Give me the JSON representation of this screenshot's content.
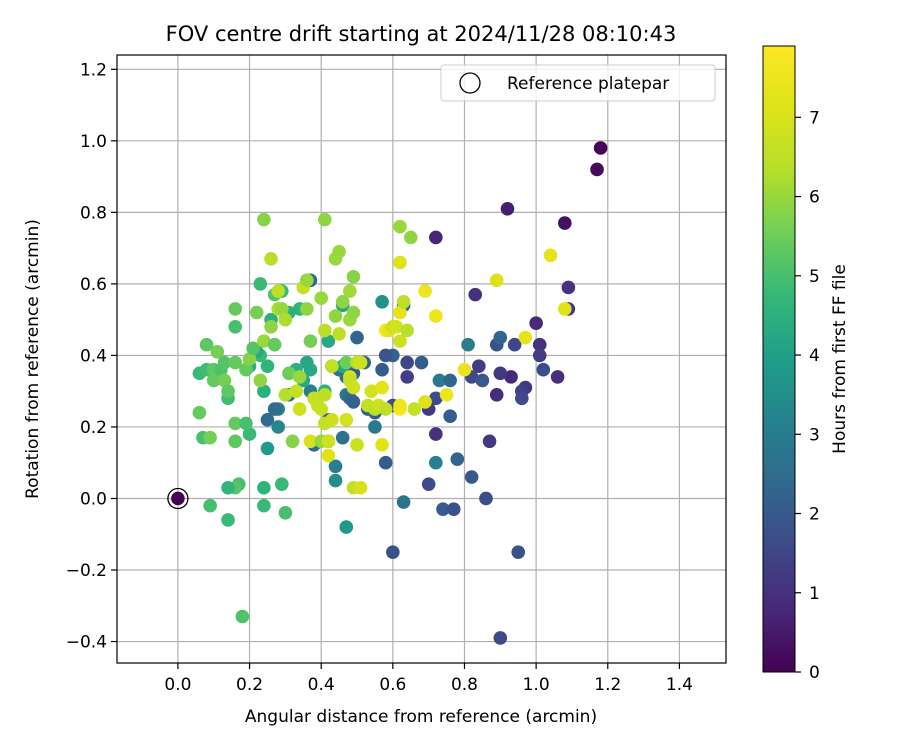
{
  "chart_data": {
    "type": "scatter",
    "title": "FOV centre drift starting at 2024/11/28 08:10:43",
    "xlabel": "Angular distance from reference (arcmin)",
    "ylabel": "Rotation from reference (arcmin)",
    "xlim": [
      -0.17,
      1.53
    ],
    "ylim": [
      -0.46,
      1.24
    ],
    "xticks": [
      "0.0",
      "0.2",
      "0.4",
      "0.6",
      "0.8",
      "1.0",
      "1.2",
      "1.4"
    ],
    "xtick_values": [
      0.0,
      0.2,
      0.4,
      0.6,
      0.8,
      1.0,
      1.2,
      1.4
    ],
    "yticks": [
      "−0.4",
      "−0.2",
      "0.0",
      "0.2",
      "0.4",
      "0.6",
      "0.8",
      "1.0",
      "1.2"
    ],
    "ytick_values": [
      -0.4,
      -0.2,
      0.0,
      0.2,
      0.4,
      0.6,
      0.8,
      1.0,
      1.2
    ],
    "grid": true,
    "legend": {
      "position": "top-right",
      "entries": [
        "Reference platepar"
      ]
    },
    "colorbar": {
      "label": "Hours from first FF file",
      "colormap": "viridis",
      "range": [
        0,
        7.9
      ],
      "ticks": [
        "0",
        "1",
        "2",
        "3",
        "4",
        "5",
        "6",
        "7"
      ],
      "tick_values": [
        0,
        1,
        2,
        3,
        4,
        5,
        6,
        7
      ]
    },
    "reference_point": {
      "x": 0.0,
      "y": 0.0,
      "label": "Reference platepar"
    },
    "points": [
      [
        1.18,
        0.98,
        0.1
      ],
      [
        1.17,
        0.92,
        0.2
      ],
      [
        1.08,
        0.77,
        0.3
      ],
      [
        0.92,
        0.81,
        0.6
      ],
      [
        1.09,
        0.59,
        1.0
      ],
      [
        1.09,
        0.53,
        1.2
      ],
      [
        1.06,
        0.34,
        0.9
      ],
      [
        1.0,
        0.49,
        0.8
      ],
      [
        1.01,
        0.43,
        1.0
      ],
      [
        1.01,
        0.4,
        1.3
      ],
      [
        1.02,
        0.36,
        1.7
      ],
      [
        0.97,
        0.31,
        1.1
      ],
      [
        0.96,
        0.3,
        1.4
      ],
      [
        0.96,
        0.28,
        1.6
      ],
      [
        0.94,
        0.43,
        1.5
      ],
      [
        0.93,
        0.34,
        0.8
      ],
      [
        0.9,
        0.35,
        1.2
      ],
      [
        0.89,
        0.43,
        1.8
      ],
      [
        0.9,
        0.45,
        2.3
      ],
      [
        0.89,
        0.29,
        0.9
      ],
      [
        0.84,
        0.37,
        1.3
      ],
      [
        0.83,
        0.57,
        1.0
      ],
      [
        0.82,
        0.34,
        1.6
      ],
      [
        0.85,
        0.33,
        2.0
      ],
      [
        0.81,
        0.43,
        3.0
      ],
      [
        0.87,
        0.16,
        1.2
      ],
      [
        0.82,
        0.06,
        2.0
      ],
      [
        0.86,
        0.0,
        1.7
      ],
      [
        0.95,
        -0.15,
        1.8
      ],
      [
        0.9,
        -0.39,
        1.6
      ],
      [
        0.72,
        0.73,
        0.7
      ],
      [
        0.72,
        0.18,
        1.0
      ],
      [
        0.76,
        0.23,
        2.1
      ],
      [
        0.72,
        0.28,
        1.6
      ],
      [
        0.7,
        0.25,
        1.2
      ],
      [
        0.73,
        0.33,
        2.9
      ],
      [
        0.76,
        0.33,
        2.3
      ],
      [
        0.68,
        0.38,
        2.1
      ],
      [
        0.64,
        0.38,
        1.5
      ],
      [
        0.64,
        0.34,
        1.4
      ],
      [
        0.72,
        0.1,
        3.1
      ],
      [
        0.7,
        0.04,
        1.6
      ],
      [
        0.74,
        -0.03,
        2.0
      ],
      [
        0.77,
        -0.03,
        1.8
      ],
      [
        0.78,
        0.11,
        2.3
      ],
      [
        0.63,
        0.54,
        2.4
      ],
      [
        0.6,
        0.4,
        2.2
      ],
      [
        0.58,
        0.4,
        1.9
      ],
      [
        0.57,
        0.36,
        2.1
      ],
      [
        0.6,
        0.26,
        1.6
      ],
      [
        0.58,
        0.1,
        2.1
      ],
      [
        0.63,
        -0.01,
        2.7
      ],
      [
        0.6,
        -0.15,
        1.8
      ],
      [
        0.57,
        0.55,
        3.6
      ],
      [
        0.55,
        0.24,
        2.1
      ],
      [
        0.55,
        0.2,
        2.9
      ],
      [
        0.53,
        0.25,
        2.3
      ],
      [
        0.52,
        0.38,
        2.3
      ],
      [
        0.5,
        0.45,
        2.3
      ],
      [
        0.49,
        0.35,
        2.1
      ],
      [
        0.47,
        0.34,
        2.5
      ],
      [
        0.47,
        0.29,
        2.8
      ],
      [
        0.48,
        0.28,
        2.4
      ],
      [
        0.49,
        0.27,
        2.2
      ],
      [
        0.45,
        0.36,
        2.7
      ],
      [
        0.43,
        0.37,
        2.0
      ],
      [
        0.42,
        0.22,
        2.0
      ],
      [
        0.42,
        0.16,
        2.0
      ],
      [
        0.46,
        0.17,
        2.6
      ],
      [
        0.44,
        0.09,
        3.0
      ],
      [
        0.44,
        0.05,
        3.5
      ],
      [
        0.47,
        -0.08,
        3.8
      ],
      [
        0.37,
        0.61,
        2.4
      ],
      [
        0.36,
        0.61,
        3.9
      ],
      [
        0.37,
        0.36,
        4.3
      ],
      [
        0.38,
        0.15,
        2.5
      ],
      [
        0.37,
        0.3,
        3.0
      ],
      [
        0.31,
        0.29,
        2.6
      ],
      [
        0.28,
        0.25,
        3.1
      ],
      [
        0.27,
        0.25,
        2.5
      ],
      [
        0.25,
        0.22,
        2.5
      ],
      [
        0.25,
        0.14,
        3.9
      ],
      [
        0.28,
        0.2,
        3.3
      ],
      [
        0.46,
        0.54,
        4.2
      ],
      [
        0.46,
        0.37,
        4.2
      ],
      [
        0.47,
        0.38,
        5.5
      ],
      [
        0.42,
        0.44,
        4.3
      ],
      [
        0.41,
        0.3,
        4.5
      ],
      [
        0.36,
        0.38,
        4.2
      ],
      [
        0.33,
        0.36,
        4.5
      ],
      [
        0.35,
        0.33,
        4.3
      ],
      [
        0.34,
        0.53,
        4.6
      ],
      [
        0.31,
        0.52,
        4.5
      ],
      [
        0.29,
        0.58,
        4.8
      ],
      [
        0.27,
        0.57,
        5.2
      ],
      [
        0.26,
        0.5,
        4.5
      ],
      [
        0.23,
        0.6,
        4.8
      ],
      [
        0.25,
        0.37,
        4.6
      ],
      [
        0.24,
        0.3,
        4.5
      ],
      [
        0.23,
        0.4,
        4.8
      ],
      [
        0.22,
        0.41,
        4.3
      ],
      [
        0.2,
        0.37,
        4.4
      ],
      [
        0.2,
        0.18,
        4.8
      ],
      [
        0.24,
        0.03,
        4.6
      ],
      [
        0.24,
        -0.02,
        4.8
      ],
      [
        0.29,
        0.04,
        4.8
      ],
      [
        0.3,
        -0.04,
        5.0
      ],
      [
        0.17,
        0.04,
        5.0
      ],
      [
        0.16,
        0.03,
        5.2
      ],
      [
        0.14,
        0.03,
        4.6
      ],
      [
        0.14,
        -0.06,
        4.8
      ],
      [
        0.18,
        -0.33,
        5.1
      ],
      [
        0.07,
        0.17,
        5.0
      ],
      [
        0.09,
        0.17,
        5.6
      ],
      [
        0.09,
        -0.02,
        5.0
      ],
      [
        0.06,
        0.24,
        5.4
      ],
      [
        0.06,
        0.35,
        4.8
      ],
      [
        0.08,
        0.36,
        4.9
      ],
      [
        0.08,
        0.43,
        5.3
      ],
      [
        0.1,
        0.36,
        5.3
      ],
      [
        0.1,
        0.33,
        5.4
      ],
      [
        0.11,
        0.41,
        5.6
      ],
      [
        0.12,
        0.36,
        5.1
      ],
      [
        0.13,
        0.33,
        5.6
      ],
      [
        0.14,
        0.28,
        4.9
      ],
      [
        0.14,
        0.3,
        5.3
      ],
      [
        0.13,
        0.38,
        5.2
      ],
      [
        0.16,
        0.48,
        5.0
      ],
      [
        0.16,
        0.38,
        5.4
      ],
      [
        0.16,
        0.53,
        5.4
      ],
      [
        0.16,
        0.21,
        5.4
      ],
      [
        0.16,
        0.16,
        5.3
      ],
      [
        0.19,
        0.21,
        5.0
      ],
      [
        0.19,
        0.36,
        5.4
      ],
      [
        0.2,
        0.39,
        5.8
      ],
      [
        0.21,
        0.42,
        5.2
      ],
      [
        0.22,
        0.52,
        5.6
      ],
      [
        0.23,
        0.33,
        5.9
      ],
      [
        0.24,
        0.78,
        5.8
      ],
      [
        0.24,
        0.44,
        6.0
      ],
      [
        0.26,
        0.67,
        6.4
      ],
      [
        0.26,
        0.48,
        5.9
      ],
      [
        0.27,
        0.43,
        5.4
      ],
      [
        0.28,
        0.58,
        6.5
      ],
      [
        0.28,
        0.53,
        6.2
      ],
      [
        0.29,
        0.53,
        6.0
      ],
      [
        0.3,
        0.5,
        6.2
      ],
      [
        0.3,
        0.29,
        6.3
      ],
      [
        0.31,
        0.35,
        5.5
      ],
      [
        0.32,
        0.16,
        5.8
      ],
      [
        0.33,
        0.3,
        6.6
      ],
      [
        0.34,
        0.25,
        6.8
      ],
      [
        0.34,
        0.34,
        6.0
      ],
      [
        0.35,
        0.59,
        6.6
      ],
      [
        0.36,
        0.53,
        5.9
      ],
      [
        0.36,
        0.61,
        6.0
      ],
      [
        0.37,
        0.16,
        7.0
      ],
      [
        0.37,
        0.44,
        5.6
      ],
      [
        0.38,
        0.28,
        6.6
      ],
      [
        0.39,
        0.26,
        6.6
      ],
      [
        0.4,
        0.25,
        6.7
      ],
      [
        0.4,
        0.56,
        6.0
      ],
      [
        0.4,
        0.16,
        6.0
      ],
      [
        0.41,
        0.78,
        5.9
      ],
      [
        0.41,
        0.29,
        6.5
      ],
      [
        0.41,
        0.47,
        6.4
      ],
      [
        0.41,
        0.21,
        6.6
      ],
      [
        0.42,
        0.16,
        6.8
      ],
      [
        0.42,
        0.12,
        7.2
      ],
      [
        0.43,
        0.37,
        6.6
      ],
      [
        0.43,
        0.22,
        6.8
      ],
      [
        0.44,
        0.51,
        5.9
      ],
      [
        0.44,
        0.67,
        6.0
      ],
      [
        0.45,
        0.69,
        6.0
      ],
      [
        0.45,
        0.46,
        6.5
      ],
      [
        0.46,
        0.55,
        5.9
      ],
      [
        0.47,
        0.22,
        6.9
      ],
      [
        0.48,
        0.34,
        7.0
      ],
      [
        0.48,
        0.33,
        6.6
      ],
      [
        0.48,
        0.58,
        6.1
      ],
      [
        0.48,
        0.5,
        6.0
      ],
      [
        0.49,
        0.62,
        5.8
      ],
      [
        0.49,
        0.52,
        5.9
      ],
      [
        0.49,
        0.31,
        6.8
      ],
      [
        0.49,
        0.03,
        6.6
      ],
      [
        0.5,
        0.15,
        6.8
      ],
      [
        0.5,
        0.38,
        6.5
      ],
      [
        0.51,
        0.38,
        6.8
      ],
      [
        0.51,
        0.03,
        7.0
      ],
      [
        0.53,
        0.26,
        6.6
      ],
      [
        0.54,
        0.3,
        6.9
      ],
      [
        0.55,
        0.25,
        6.4
      ],
      [
        0.56,
        0.26,
        6.8
      ],
      [
        0.57,
        0.31,
        7.3
      ],
      [
        0.57,
        0.15,
        7.2
      ],
      [
        0.58,
        0.25,
        6.5
      ],
      [
        0.58,
        0.47,
        7.7
      ],
      [
        0.59,
        0.47,
        7.2
      ],
      [
        0.6,
        0.48,
        6.7
      ],
      [
        0.61,
        0.48,
        6.9
      ],
      [
        0.62,
        0.44,
        6.8
      ],
      [
        0.62,
        0.25,
        7.9
      ],
      [
        0.62,
        0.26,
        7.5
      ],
      [
        0.62,
        0.76,
        6.0
      ],
      [
        0.62,
        0.66,
        7.1
      ],
      [
        0.62,
        0.52,
        7.3
      ],
      [
        0.63,
        0.55,
        6.5
      ],
      [
        0.64,
        0.47,
        6.4
      ],
      [
        0.65,
        0.73,
        5.9
      ],
      [
        0.66,
        0.25,
        6.6
      ],
      [
        0.69,
        0.58,
        7.5
      ],
      [
        0.69,
        0.27,
        7.2
      ],
      [
        0.72,
        0.51,
        7.5
      ],
      [
        0.75,
        0.29,
        7.5
      ],
      [
        0.8,
        0.36,
        7.4
      ],
      [
        0.89,
        0.61,
        7.1
      ],
      [
        0.97,
        0.45,
        7.3
      ],
      [
        1.04,
        0.68,
        7.3
      ],
      [
        1.08,
        0.53,
        7.2
      ]
    ]
  }
}
